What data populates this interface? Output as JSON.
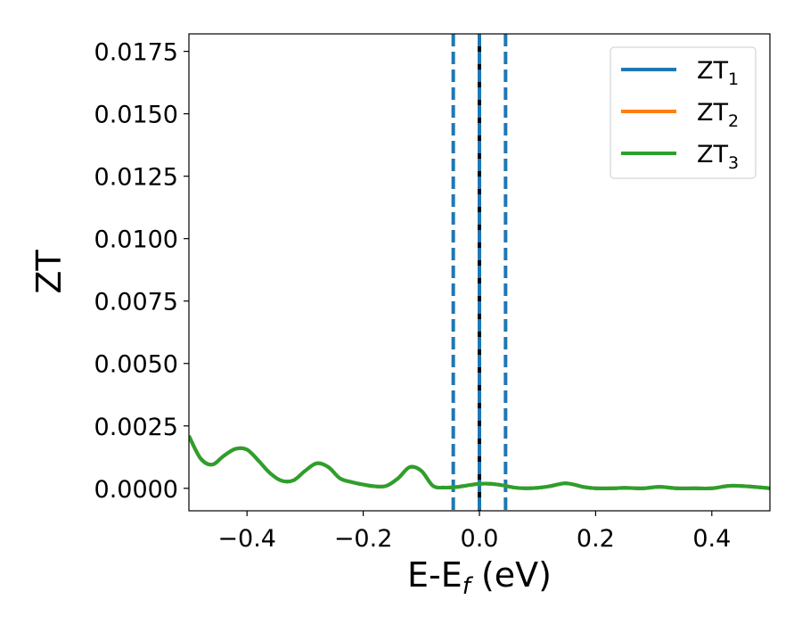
{
  "chart_data": {
    "type": "line",
    "title": "",
    "xlabel": "E-E",
    "xlabel_sub": "f",
    "xlabel_suffix": " (eV)",
    "ylabel": "ZT",
    "xlim": [
      -0.5,
      0.5
    ],
    "ylim": [
      -0.0009,
      0.0182
    ],
    "xticks": [
      -0.4,
      -0.2,
      0.0,
      0.2,
      0.4
    ],
    "xtick_labels": [
      "−0.4",
      "−0.2",
      "0.0",
      "0.2",
      "0.4"
    ],
    "yticks": [
      0.0,
      0.0025,
      0.005,
      0.0075,
      0.01,
      0.0125,
      0.015,
      0.0175
    ],
    "ytick_labels": [
      "0.0000",
      "0.0025",
      "0.0050",
      "0.0075",
      "0.0100",
      "0.0125",
      "0.0150",
      "0.0175"
    ],
    "grid": false,
    "legend_position": "top-right",
    "vlines": [
      {
        "x": -0.045,
        "style": "dashed",
        "color": "#1f77b4"
      },
      {
        "x": 0.0,
        "style": "solid",
        "color": "#000000"
      },
      {
        "x": 0.0,
        "style": "dashed",
        "color": "#1f77b4"
      },
      {
        "x": 0.045,
        "style": "dashed",
        "color": "#1f77b4"
      }
    ],
    "x": [
      -0.5,
      -0.48,
      -0.46,
      -0.44,
      -0.42,
      -0.4,
      -0.38,
      -0.36,
      -0.34,
      -0.32,
      -0.3,
      -0.28,
      -0.26,
      -0.24,
      -0.22,
      -0.2,
      -0.18,
      -0.16,
      -0.14,
      -0.12,
      -0.1,
      -0.08,
      -0.06,
      -0.04,
      -0.02,
      0.0,
      0.02,
      0.04,
      0.06,
      0.08,
      0.1,
      0.12,
      0.15,
      0.18,
      0.2,
      0.23,
      0.25,
      0.28,
      0.31,
      0.34,
      0.37,
      0.4,
      0.43,
      0.46,
      0.5
    ],
    "series": [
      {
        "name": "ZT",
        "sub": "1",
        "color": "#1f77b4",
        "values": [
          0.0021,
          0.0012,
          0.00095,
          0.0013,
          0.00158,
          0.00155,
          0.0011,
          0.0006,
          0.0003,
          0.00032,
          0.0007,
          0.001,
          0.00085,
          0.0004,
          0.00025,
          0.00015,
          8e-05,
          0.0001,
          0.0004,
          0.00085,
          0.0007,
          0.0001,
          3e-05,
          5e-05,
          0.00012,
          0.00018,
          0.00018,
          0.00012,
          3e-05,
          0.0,
          2e-05,
          8e-05,
          0.0002,
          5e-05,
          0.0,
          0.0,
          2e-05,
          0.0,
          6e-05,
          0.0,
          0.0,
          0.0,
          0.0001,
          8e-05,
          0.0
        ]
      },
      {
        "name": "ZT",
        "sub": "2",
        "color": "#ff7f0e",
        "values": [
          0.0021,
          0.0012,
          0.00095,
          0.0013,
          0.00158,
          0.00155,
          0.0011,
          0.0006,
          0.0003,
          0.00032,
          0.0007,
          0.001,
          0.00085,
          0.0004,
          0.00025,
          0.00015,
          8e-05,
          0.0001,
          0.0004,
          0.00085,
          0.0007,
          0.0001,
          3e-05,
          5e-05,
          0.00012,
          0.00018,
          0.00018,
          0.00012,
          3e-05,
          0.0,
          2e-05,
          8e-05,
          0.0002,
          5e-05,
          0.0,
          0.0,
          2e-05,
          0.0,
          6e-05,
          0.0,
          0.0,
          0.0,
          0.0001,
          8e-05,
          0.0
        ]
      },
      {
        "name": "ZT",
        "sub": "3",
        "color": "#2ca02c",
        "values": [
          0.0021,
          0.0012,
          0.00095,
          0.0013,
          0.00158,
          0.00155,
          0.0011,
          0.0006,
          0.0003,
          0.00032,
          0.0007,
          0.001,
          0.00085,
          0.0004,
          0.00025,
          0.00015,
          8e-05,
          0.0001,
          0.0004,
          0.00085,
          0.0007,
          0.0001,
          3e-05,
          5e-05,
          0.00012,
          0.00018,
          0.00018,
          0.00012,
          3e-05,
          0.0,
          2e-05,
          8e-05,
          0.0002,
          5e-05,
          0.0,
          0.0,
          2e-05,
          0.0,
          6e-05,
          0.0,
          0.0,
          0.0,
          0.0001,
          8e-05,
          0.0
        ]
      }
    ]
  }
}
